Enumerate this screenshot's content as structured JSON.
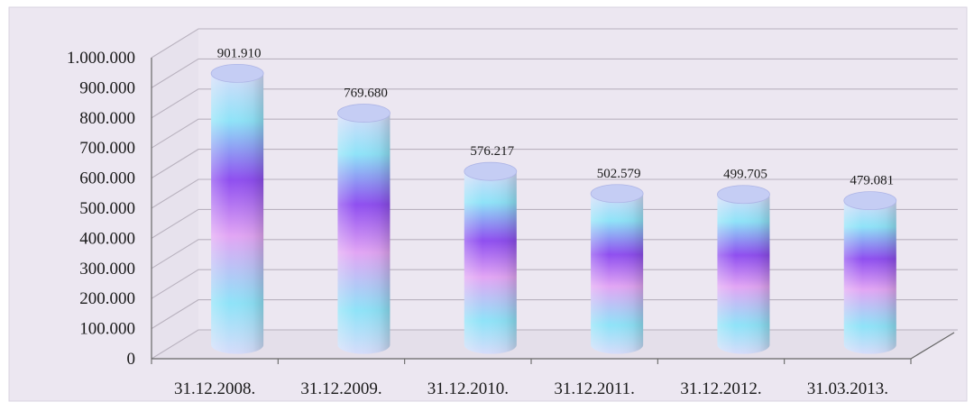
{
  "chart_data": {
    "type": "bar",
    "categories": [
      "31.12.2008.",
      "31.12.2009.",
      "31.12.2010.",
      "31.12.2011.",
      "31.12.2012.",
      "31.03.2013."
    ],
    "values": [
      901910,
      769680,
      576217,
      502579,
      499705,
      479081
    ],
    "data_labels": [
      "901.910",
      "769.680",
      "576.217",
      "502.579",
      "499.705",
      "479.081"
    ],
    "y_ticks": [
      0,
      100000,
      200000,
      300000,
      400000,
      500000,
      600000,
      700000,
      800000,
      900000,
      1000000
    ],
    "y_tick_labels": [
      "0",
      "100.000",
      "200.000",
      "300.000",
      "400.000",
      "500.000",
      "600.000",
      "700.000",
      "800.000",
      "900.000",
      "1.000.000"
    ],
    "ylim": [
      0,
      1000000
    ],
    "title": "",
    "xlabel": "",
    "ylabel": "",
    "grid": true,
    "legend": "none",
    "style": "3d-cylinder",
    "colors": {
      "background": "#ece7f1",
      "gridline": "#b9b2bf",
      "axis": "#666666",
      "bar_light": "#d6dcfa",
      "bar_cyan": "#8fe3f8",
      "bar_violet": "#8f4ff0",
      "bar_pink": "#e2a6f4",
      "bar_top": "#c5cdf4"
    }
  }
}
